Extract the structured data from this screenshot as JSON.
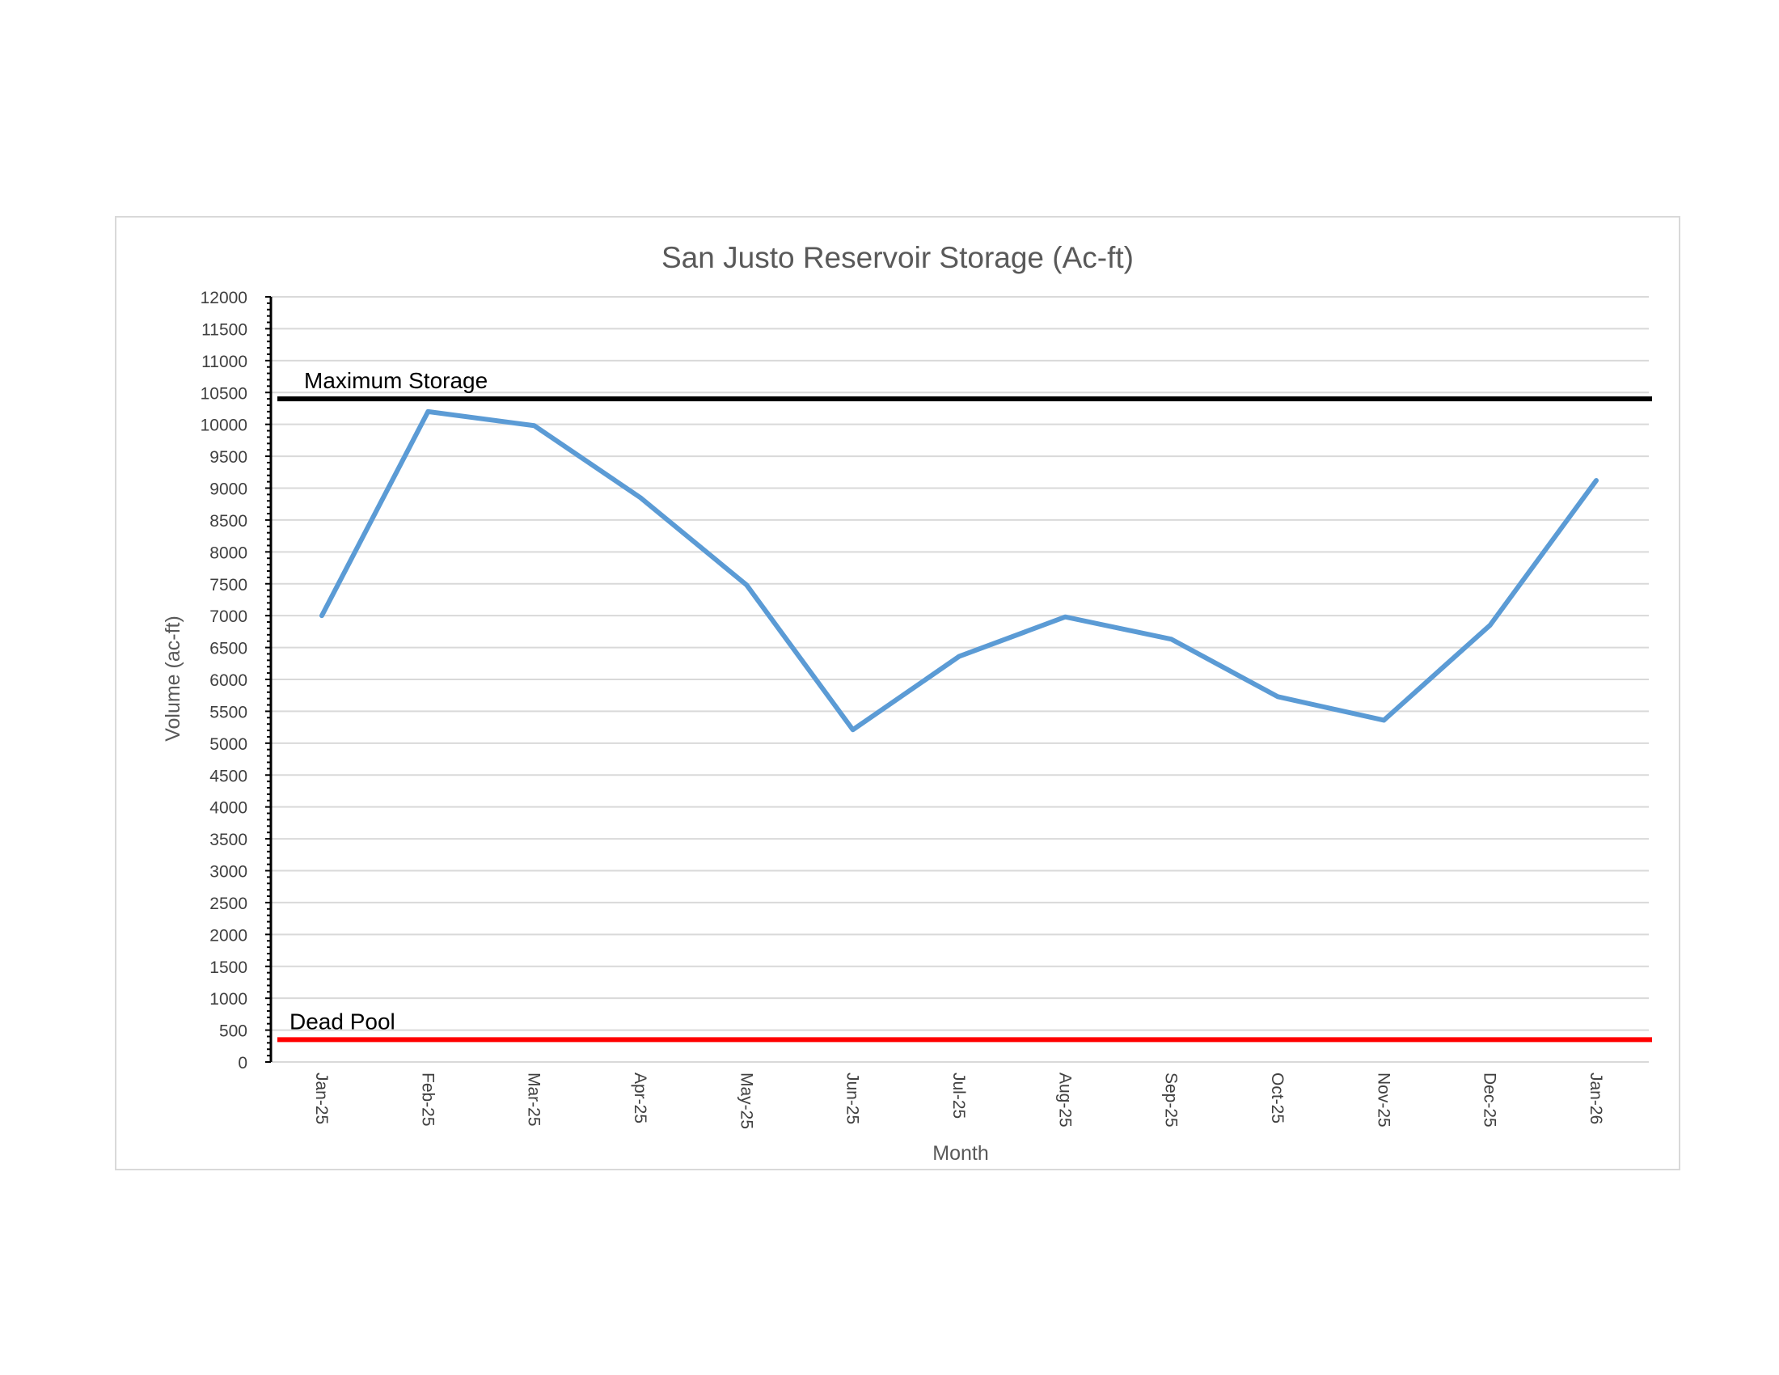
{
  "chart_data": {
    "type": "line",
    "title": "San Justo Reservoir Storage (Ac-ft)",
    "xlabel": "Month",
    "ylabel": "Volume (ac-ft)",
    "ylim": [
      0,
      12000
    ],
    "y_tick_step": 500,
    "y_ticks": [
      "0",
      "500",
      "1000",
      "1500",
      "2000",
      "2500",
      "3000",
      "3500",
      "4000",
      "4500",
      "5000",
      "5500",
      "6000",
      "6500",
      "7000",
      "7500",
      "8000",
      "8500",
      "9000",
      "9500",
      "10000",
      "10500",
      "11000",
      "11500",
      "12000"
    ],
    "categories": [
      "Jan-25",
      "Feb-25",
      "Mar-25",
      "Apr-25",
      "May-25",
      "Jun-25",
      "Jul-25",
      "Aug-25",
      "Sep-25",
      "Oct-25",
      "Nov-25",
      "Dec-25",
      "Jan-26"
    ],
    "series": [
      {
        "values": [
          7000,
          10200,
          9980,
          8850,
          7480,
          5210,
          6360,
          6980,
          6630,
          5730,
          5360,
          6850,
          9120
        ],
        "color": "#5b9bd5"
      }
    ],
    "reference_lines": [
      {
        "label": "Maximum Storage",
        "value": 10400,
        "color": "#000000"
      },
      {
        "label": "Dead Pool",
        "value": 350,
        "color": "#ff0000"
      }
    ],
    "grid": true,
    "legend": "none"
  }
}
